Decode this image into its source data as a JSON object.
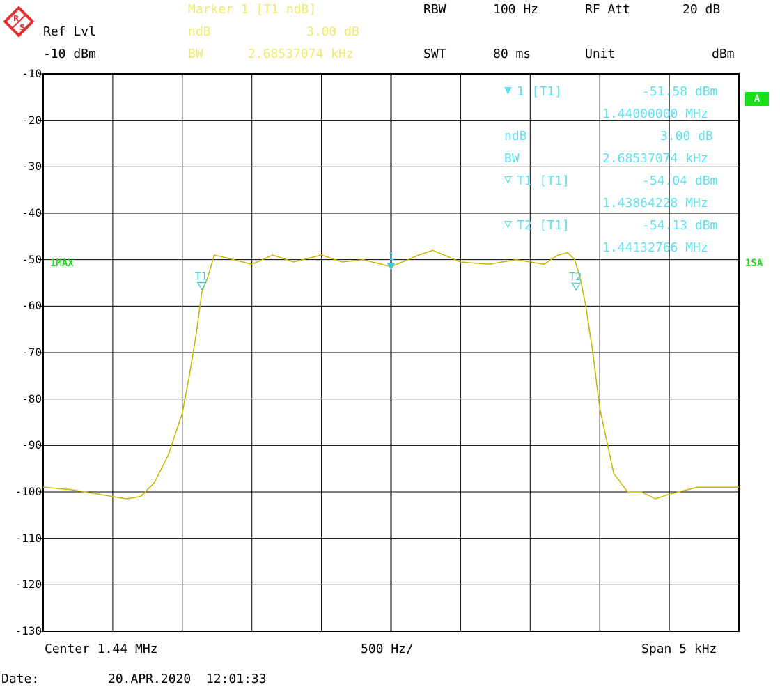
{
  "header": {
    "ref_lvl_label": "Ref Lvl",
    "ref_lvl_value": "-10 dBm",
    "marker_title": "Marker 1 [T1 ndB]",
    "ndb_label": "ndB",
    "ndb_value": "3.00 dB",
    "bw_label": "BW",
    "bw_value": "2.68537074 kHz",
    "rbw_label": "RBW",
    "rbw_value": "100 Hz",
    "swt_label": "SWT",
    "swt_value": "80 ms",
    "rf_att_label": "RF Att",
    "rf_att_value": "20 dB",
    "unit_label": "Unit",
    "unit_value": "dBm"
  },
  "marker_info": {
    "m1_label": "1 [T1]",
    "m1_level": "-51.58 dBm",
    "m1_freq": "1.44000000 MHz",
    "ndb_label": "ndB",
    "ndb_value": "3.00 dB",
    "bw_label": "BW",
    "bw_value": "2.68537074 kHz",
    "t1_label": "T1 [T1]",
    "t1_level": "-54.04 dBm",
    "t1_freq": "1.43864228 MHz",
    "t2_label": "T2 [T1]",
    "t2_level": "-54.13 dBm",
    "t2_freq": "1.44132766 MHz"
  },
  "side_labels": {
    "left_trace": "1MAX",
    "right_trace": "1SA",
    "badge": "A"
  },
  "footer": {
    "center": "Center 1.44 MHz",
    "per_div": "500 Hz/",
    "span": "Span 5 kHz",
    "date_label": "Date:",
    "date_value": "20.APR.2020  12:01:33"
  },
  "logo_letters": "R S",
  "colors": {
    "trace": "#c8b400",
    "marker": "#3cc8dc",
    "grid": "#000000",
    "header_yellow": "#f3ea6a",
    "info_cyan": "#5fe0ee",
    "green": "#1fd61f",
    "logo_red": "#e03030"
  },
  "chart_data": {
    "type": "line",
    "x_unit": "kHz offset from center (1.44 MHz)",
    "xlim": [
      -2.5,
      2.5
    ],
    "ylim": [
      -130,
      -10
    ],
    "ylabel": "dBm",
    "yticks": [
      -10,
      -20,
      -30,
      -40,
      -50,
      -60,
      -70,
      -80,
      -90,
      -100,
      -110,
      -120,
      -130
    ],
    "grid": true,
    "series": [
      {
        "name": "1MAX",
        "x": [
          -2.5,
          -2.3,
          -2.2,
          -2.0,
          -1.9,
          -1.8,
          -1.7,
          -1.6,
          -1.5,
          -1.45,
          -1.4,
          -1.36,
          -1.32,
          -1.27,
          -1.2,
          -1.0,
          -0.85,
          -0.7,
          -0.5,
          -0.35,
          -0.2,
          0.0,
          0.2,
          0.3,
          0.5,
          0.7,
          0.9,
          1.0,
          1.1,
          1.2,
          1.27,
          1.32,
          1.36,
          1.4,
          1.45,
          1.5,
          1.6,
          1.7,
          1.8,
          1.9,
          2.0,
          2.2,
          2.4,
          2.5
        ],
        "y": [
          -99,
          -99.5,
          -100,
          -101,
          -101.5,
          -101,
          -98,
          -92,
          -83,
          -75,
          -66,
          -57,
          -54,
          -49,
          -49.5,
          -51,
          -49,
          -50.5,
          -49,
          -50.5,
          -50,
          -51.5,
          -49,
          -48,
          -50.5,
          -51,
          -50,
          -50.5,
          -51,
          -49,
          -48.5,
          -50,
          -54,
          -60,
          -70,
          -82,
          -96,
          -100,
          -100,
          -101.5,
          -100.5,
          -99,
          -99,
          -99
        ]
      }
    ],
    "markers": [
      {
        "name": "1",
        "x": 0.0,
        "y": -51.58,
        "label": "1"
      },
      {
        "name": "T1",
        "x": -1.36,
        "y": -54.04,
        "label": "T1"
      },
      {
        "name": "T2",
        "x": 1.33,
        "y": -54.13,
        "label": "T2"
      }
    ]
  }
}
